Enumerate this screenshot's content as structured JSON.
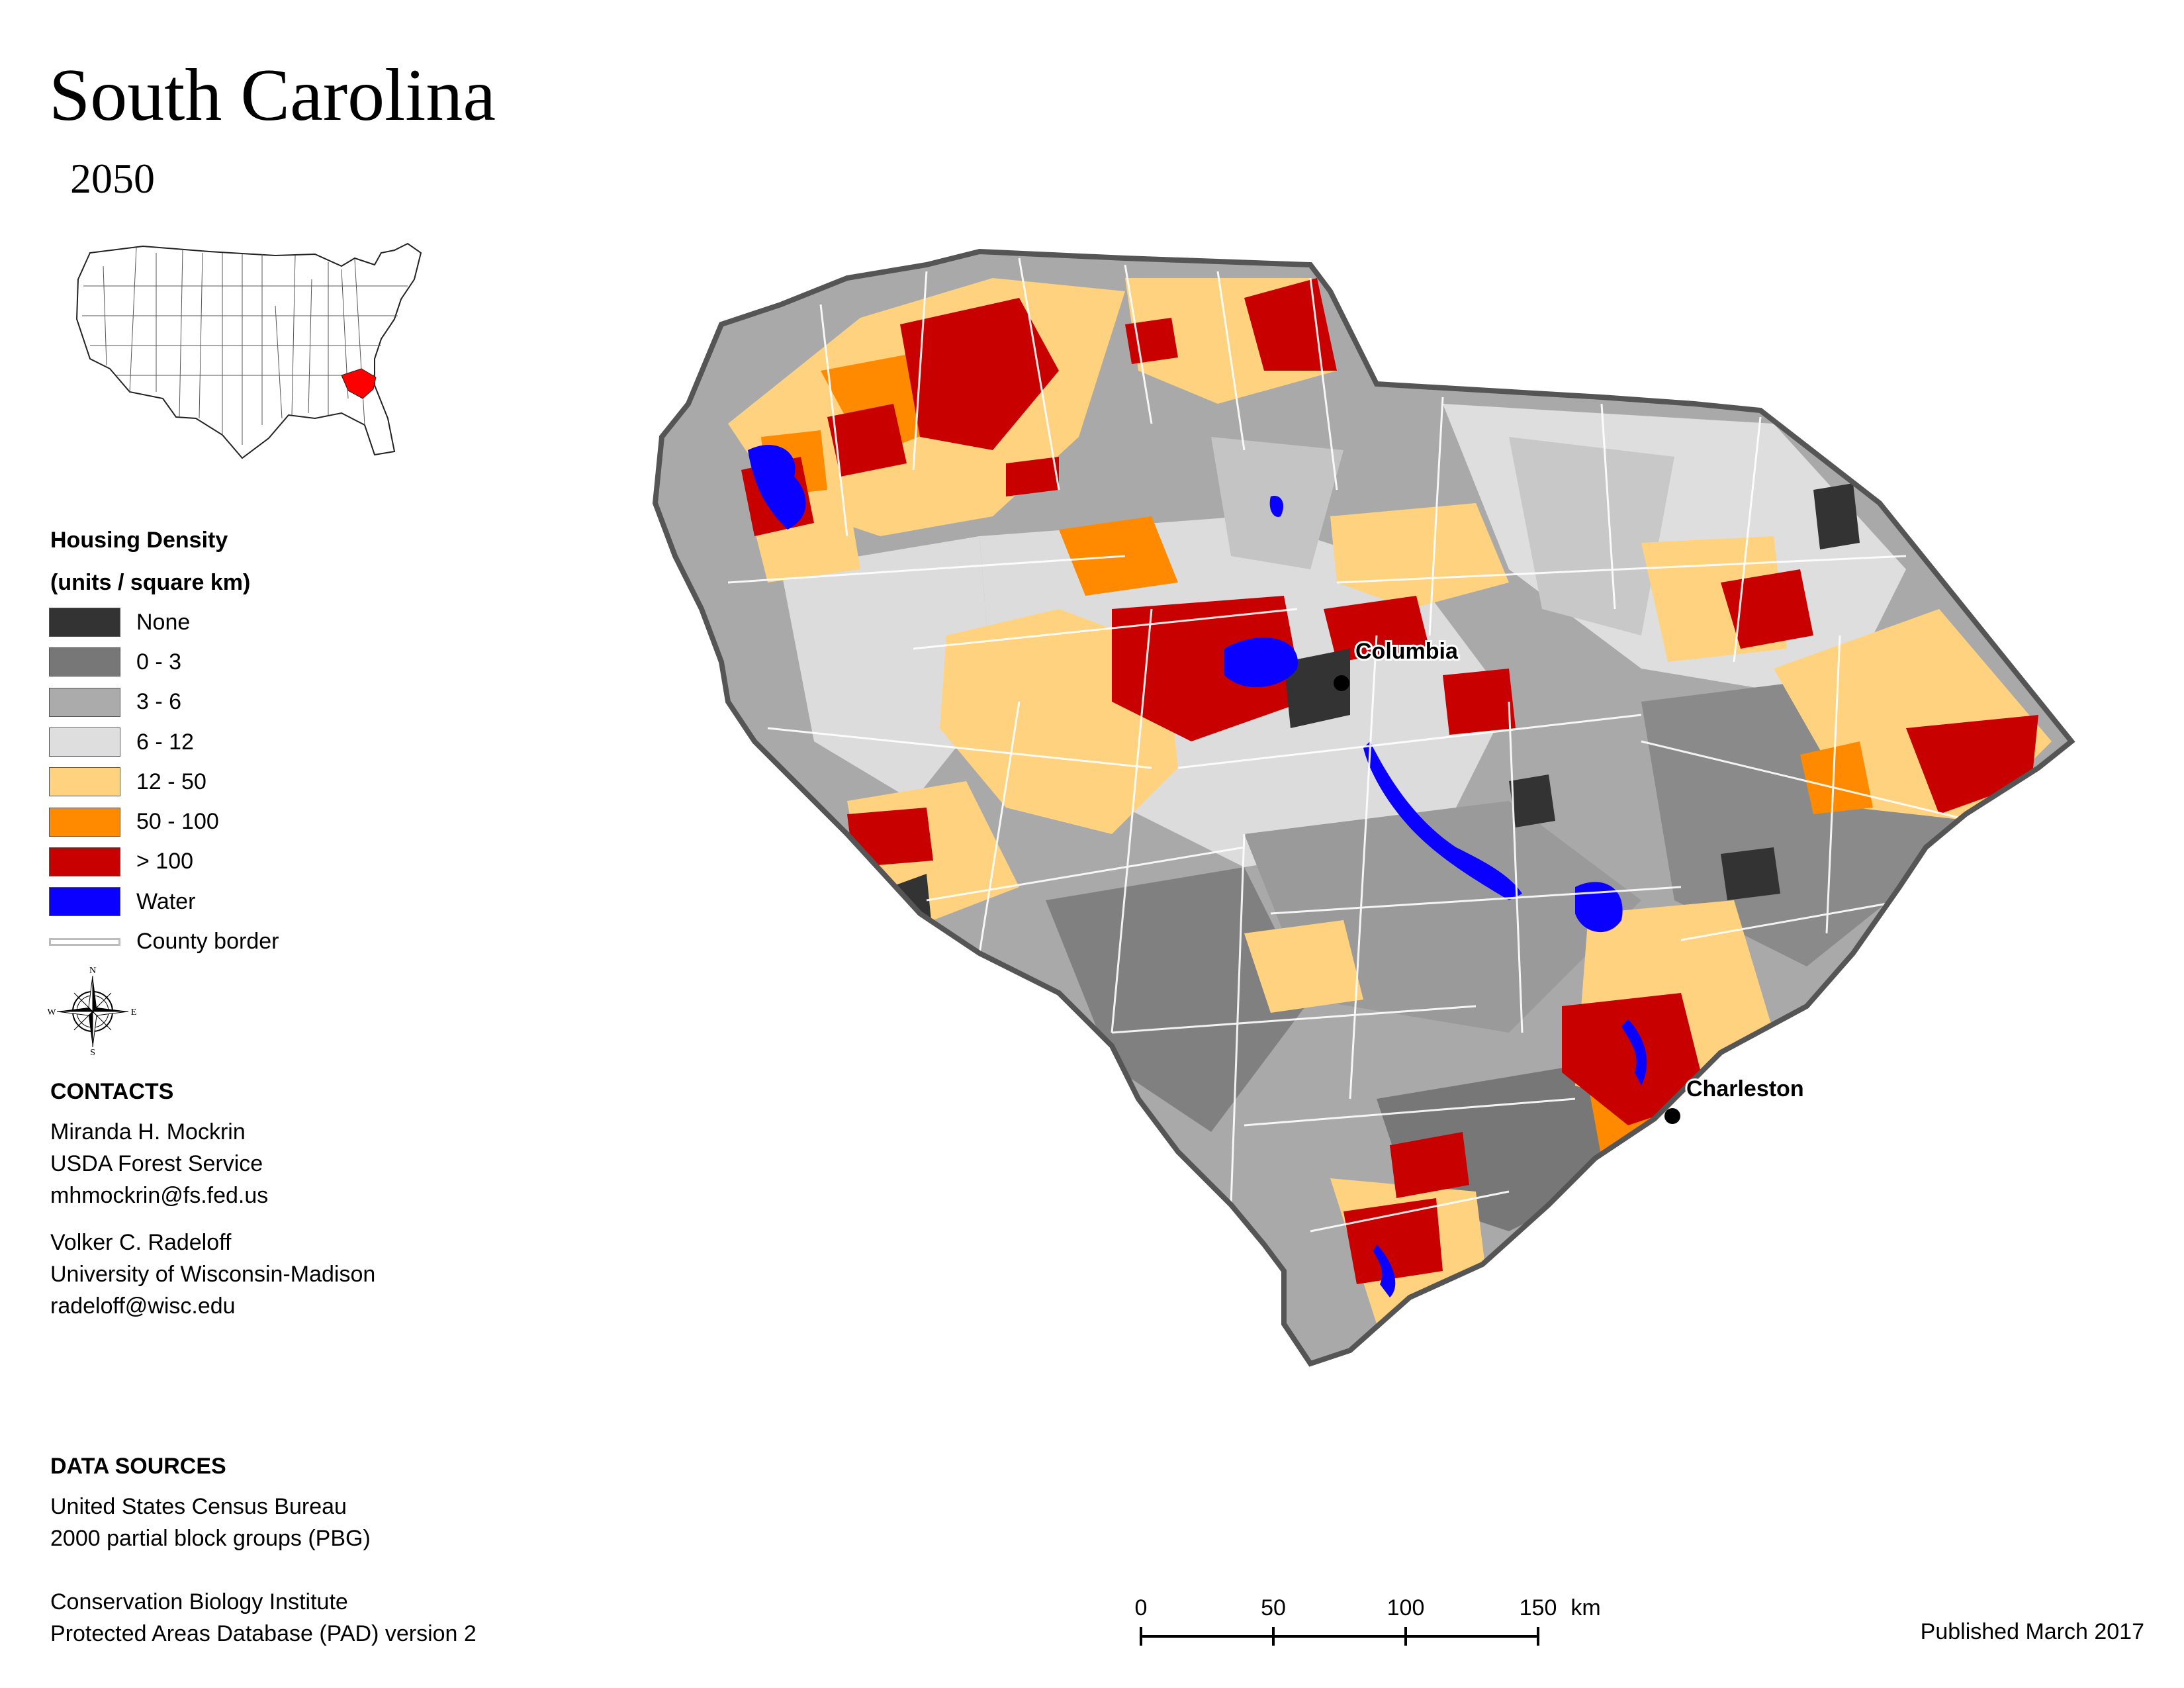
{
  "header": {
    "title": "South Carolina",
    "year": "2050"
  },
  "inset_map": {
    "icon": "us-states-outline",
    "highlight_color": "#ff0000"
  },
  "legend": {
    "title_line1": "Housing Density",
    "title_line2": "(units / square km)",
    "items": [
      {
        "label": "None",
        "color": "#333333"
      },
      {
        "label": "0 - 3",
        "color": "#777777"
      },
      {
        "label": "3 - 6",
        "color": "#ababab"
      },
      {
        "label": "6 - 12",
        "color": "#dedede"
      },
      {
        "label": "12 - 50",
        "color": "#ffd27f"
      },
      {
        "label": "50 - 100",
        "color": "#ff8a00"
      },
      {
        "label": "> 100",
        "color": "#c80000"
      },
      {
        "label": "Water",
        "color": "#0a00ff"
      },
      {
        "label": "County border",
        "color": "#bdbdbd"
      }
    ]
  },
  "compass": {
    "icon": "compass-rose-icon",
    "n": "N",
    "s": "S",
    "e": "E",
    "w": "W"
  },
  "contacts": {
    "heading": "CONTACTS",
    "people": [
      {
        "name": "Miranda H. Mockrin",
        "org": "USDA Forest Service",
        "email": "mhmockrin@fs.fed.us"
      },
      {
        "name": "Volker C. Radeloff",
        "org": "University of Wisconsin-Madison",
        "email": "radeloff@wisc.edu"
      }
    ]
  },
  "data_sources": {
    "heading": "DATA SOURCES",
    "source1_line1": "United States Census Bureau",
    "source1_line2": "2000 partial block groups (PBG)",
    "source2_line1": "Conservation Biology Institute",
    "source2_line2": "Protected Areas Database (PAD) version 2"
  },
  "scale": {
    "ticks": [
      "0",
      "50",
      "100",
      "150"
    ],
    "unit": "km"
  },
  "published": "Published March 2017",
  "cities": [
    {
      "name": "Columbia"
    },
    {
      "name": "Charleston"
    }
  ]
}
